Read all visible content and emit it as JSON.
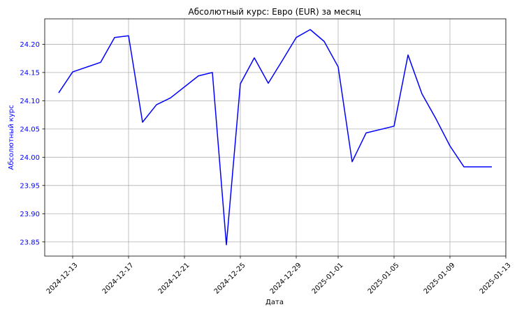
{
  "chart_data": {
    "type": "line",
    "title": "Абсолютный курс: Евро (EUR) за месяц",
    "xlabel": "Дата",
    "ylabel": "Абсолютный курс",
    "xlim": [
      "2024-12-11",
      "2025-01-13"
    ],
    "ylim": [
      23.825,
      24.245
    ],
    "grid": true,
    "x_ticks": [
      "2024-12-13",
      "2024-12-17",
      "2024-12-21",
      "2024-12-25",
      "2024-12-29",
      "2025-01-01",
      "2025-01-05",
      "2025-01-09",
      "2025-01-13"
    ],
    "y_ticks": [
      "23.85",
      "23.90",
      "23.95",
      "24.00",
      "24.05",
      "24.10",
      "24.15",
      "24.20"
    ],
    "series": [
      {
        "color": "#0000ff",
        "x": [
          "2024-12-12",
          "2024-12-13",
          "2024-12-15",
          "2024-12-16",
          "2024-12-17",
          "2024-12-18",
          "2024-12-19",
          "2024-12-20",
          "2024-12-22",
          "2024-12-23",
          "2024-12-24",
          "2024-12-25",
          "2024-12-26",
          "2024-12-27",
          "2024-12-28",
          "2024-12-29",
          "2024-12-30",
          "2024-12-31",
          "2025-01-01",
          "2025-01-02",
          "2025-01-03",
          "2025-01-05",
          "2025-01-06",
          "2025-01-07",
          "2025-01-08",
          "2025-01-09",
          "2025-01-10",
          "2025-01-11",
          "2025-01-12"
        ],
        "values": [
          24.114,
          24.151,
          24.168,
          24.212,
          24.215,
          24.062,
          24.093,
          24.105,
          24.144,
          24.15,
          23.845,
          24.13,
          24.176,
          24.131,
          24.171,
          24.212,
          24.226,
          24.205,
          24.16,
          23.992,
          24.043,
          24.055,
          24.181,
          24.112,
          24.068,
          24.02,
          23.983,
          23.983,
          23.983
        ]
      }
    ],
    "colors": {
      "line": "#0000ff",
      "ylabel": "#0000ff",
      "ytick": "#0000ff",
      "grid": "#b0b0b0"
    }
  }
}
